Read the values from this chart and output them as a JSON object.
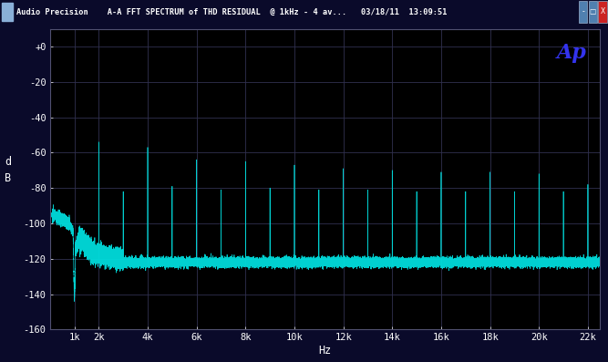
{
  "title_bar_text": "Audio Precision    A-A FFT SPECTRUM of THD RESIDUAL  @ 1kHz - 4 av...   03/18/11  13:09:51",
  "outer_bg": "#0a0a2a",
  "plot_bg_color": "#000000",
  "title_bar_bg": "#5080b0",
  "line_color": "#00dddd",
  "grid_color": "#303050",
  "text_color": "#ffffff",
  "ylabel": "d\nB",
  "xlabel": "Hz",
  "ylim": [
    -160,
    10
  ],
  "xlim": [
    0,
    22500
  ],
  "yticks": [
    0,
    -20,
    -40,
    -60,
    -80,
    -100,
    -120,
    -140,
    -160
  ],
  "ytick_labels": [
    "+0",
    "-20",
    "-40",
    "-60",
    "-80",
    "-100",
    "-120",
    "-140",
    "-160"
  ],
  "xticks": [
    1000,
    2000,
    4000,
    6000,
    8000,
    10000,
    12000,
    14000,
    16000,
    18000,
    20000,
    22000
  ],
  "xtick_labels": [
    "1k",
    "2k",
    "4k",
    "6k",
    "8k",
    "10k",
    "12k",
    "14k",
    "16k",
    "18k",
    "20k",
    "22k"
  ],
  "ap_text": "Ap",
  "ap_color": "#3333ee",
  "noise_floor": -122,
  "harmonics": [
    {
      "freq": 2000,
      "level": -72
    },
    {
      "freq": 3000,
      "level": -100
    },
    {
      "freq": 4000,
      "level": -75
    },
    {
      "freq": 5000,
      "level": -97
    },
    {
      "freq": 6000,
      "level": -82
    },
    {
      "freq": 7000,
      "level": -99
    },
    {
      "freq": 8000,
      "level": -83
    },
    {
      "freq": 9000,
      "level": -98
    },
    {
      "freq": 10000,
      "level": -85
    },
    {
      "freq": 11000,
      "level": -99
    },
    {
      "freq": 12000,
      "level": -87
    },
    {
      "freq": 13000,
      "level": -99
    },
    {
      "freq": 14000,
      "level": -88
    },
    {
      "freq": 15000,
      "level": -100
    },
    {
      "freq": 16000,
      "level": -89
    },
    {
      "freq": 17000,
      "level": -100
    },
    {
      "freq": 18000,
      "level": -89
    },
    {
      "freq": 19000,
      "level": -100
    },
    {
      "freq": 20000,
      "level": -90
    },
    {
      "freq": 21000,
      "level": -100
    },
    {
      "freq": 22000,
      "level": -96
    }
  ]
}
